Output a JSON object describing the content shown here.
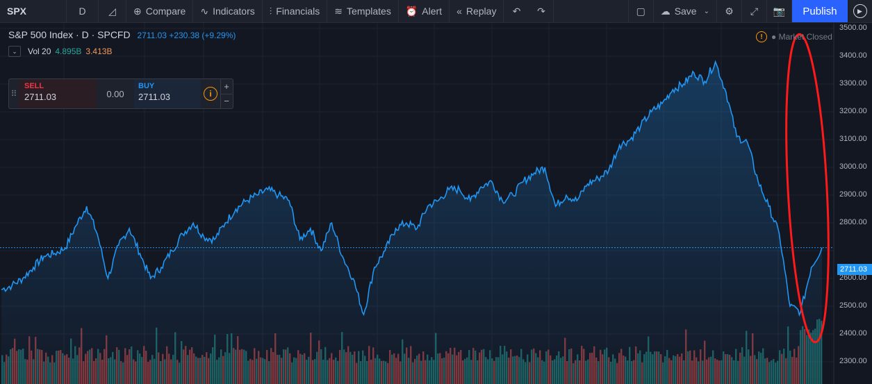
{
  "toolbar": {
    "symbol": "SPX",
    "interval": "D",
    "compare": "Compare",
    "indicators": "Indicators",
    "financials": "Financials",
    "templates": "Templates",
    "alert": "Alert",
    "replay": "Replay",
    "save": "Save",
    "publish": "Publish"
  },
  "legend": {
    "title": "S&P 500 Index · D · SPCFD",
    "price": "2711.03",
    "change": "+230.38 (+9.29%)"
  },
  "volume": {
    "label": "Vol 20",
    "value_a": "4.895B",
    "value_b": "3.413B"
  },
  "trade": {
    "sell_label": "SELL",
    "sell_price": "2711.03",
    "spread": "0.00",
    "buy_label": "BUY",
    "buy_price": "2711.03",
    "plus": "+",
    "minus": "−"
  },
  "market_status": "● Market Closed",
  "colors": {
    "line": "#2196f3",
    "volume_up": "#26a69a",
    "volume_down": "#ef5350",
    "annotation": "#ff1a1a",
    "accent": "#2962ff"
  },
  "chart_data": {
    "type": "area",
    "title": "S&P 500 Index · D · SPCFD",
    "ylim": [
      2270,
      3510
    ],
    "yticks": [
      3500,
      3400,
      3300,
      3200,
      3100,
      3000,
      2900,
      2800,
      2700,
      2600,
      2500,
      2400,
      2300
    ],
    "ytick_labels": [
      "3500.00",
      "3400.00",
      "3300.00",
      "3200.00",
      "3100.00",
      "3000.00",
      "2900.00",
      "2800.00",
      "2711.03",
      "2600.00",
      "2500.00",
      "2400.00",
      "2300.00"
    ],
    "last_price": 2711.03,
    "series": [
      {
        "values": [
          2560,
          2575,
          2600,
          2640,
          2680,
          2690,
          2710,
          2790,
          2860,
          2760,
          2600,
          2720,
          2780,
          2690,
          2600,
          2640,
          2700,
          2760,
          2800,
          2750,
          2740,
          2800,
          2850,
          2880,
          2900,
          2920,
          2900,
          2880,
          2740,
          2780,
          2700,
          2800,
          2680,
          2600,
          2470,
          2640,
          2700,
          2780,
          2800,
          2780,
          2860,
          2880,
          2920,
          2920,
          2880,
          2930,
          2950,
          2880,
          2900,
          2950,
          2980,
          3000,
          2860,
          2900,
          2880,
          2940,
          2960,
          2990,
          3080,
          3100,
          3150,
          3200,
          3230,
          3280,
          3300,
          3340,
          3310,
          3380,
          3270,
          3110,
          3090,
          2950,
          2860,
          2760,
          2500,
          2480,
          2640,
          2711
        ]
      }
    ],
    "volume": [
      {
        "name": "Vol 20"
      }
    ]
  }
}
